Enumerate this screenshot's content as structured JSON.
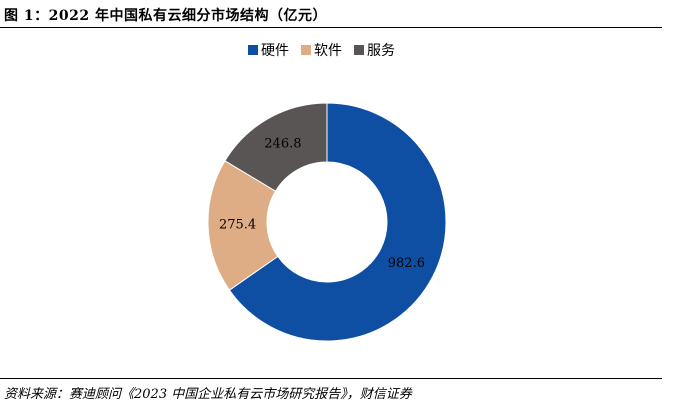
{
  "title": "图 1：2022 年中国私有云细分市场结构（亿元）",
  "source": "资料来源：赛迪顾问《2023 中国企业私有云市场研究报告》，财信证券",
  "chart_data": {
    "type": "pie",
    "donut": true,
    "categories": [
      "硬件",
      "软件",
      "服务"
    ],
    "values": [
      982.6,
      275.4,
      246.8
    ],
    "value_labels": [
      "982.6",
      "275.4",
      "246.8"
    ],
    "colors": [
      "#0e4fa3",
      "#deac85",
      "#5a5555"
    ],
    "legend": {
      "position": "top",
      "items": [
        {
          "label": "硬件",
          "color": "#0e4fa3"
        },
        {
          "label": "软件",
          "color": "#deac85"
        },
        {
          "label": "服务",
          "color": "#5a5555"
        }
      ]
    },
    "start_angle": "12 o'clock",
    "direction": "clockwise"
  }
}
